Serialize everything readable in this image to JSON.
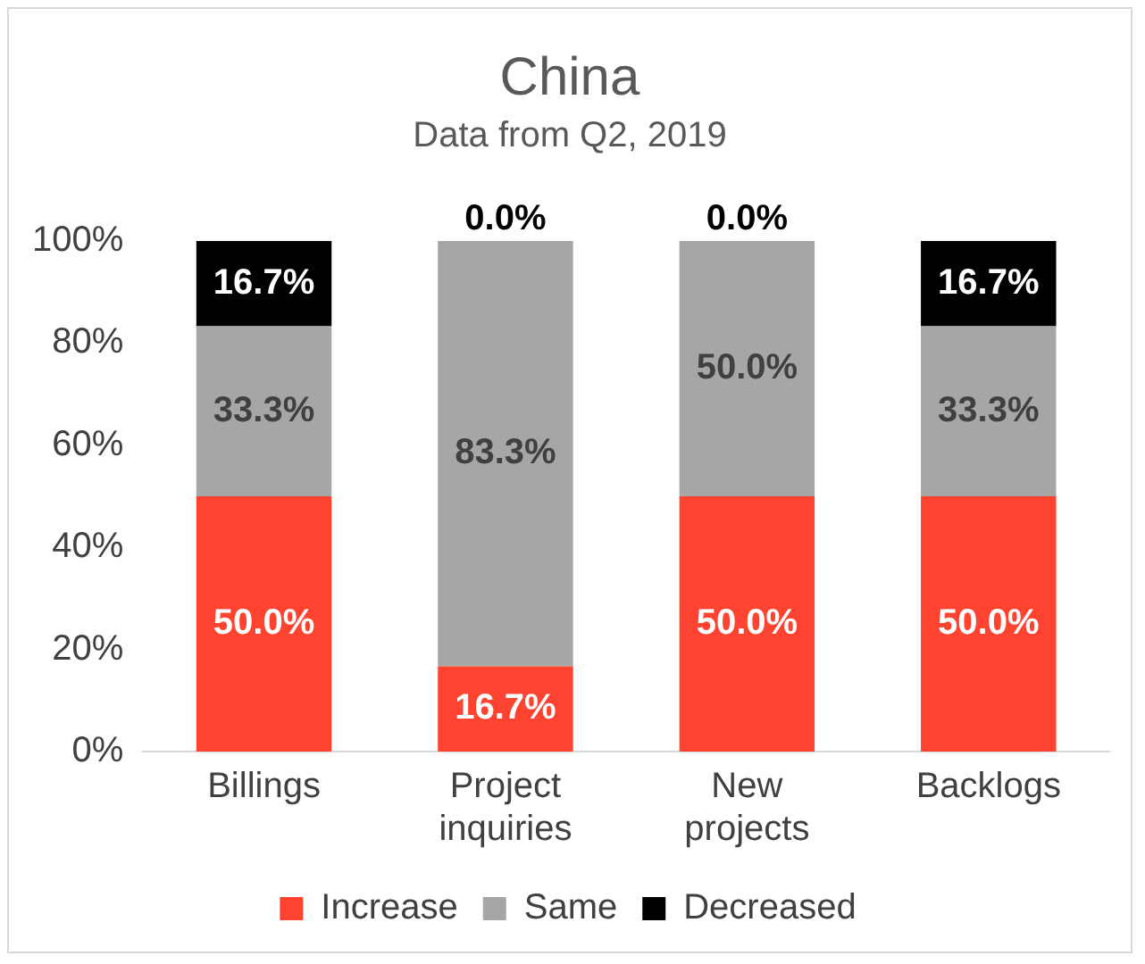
{
  "chart_data": {
    "type": "bar",
    "title": "China",
    "subtitle": "Data from Q2, 2019",
    "stacked": true,
    "categories": [
      "Billings",
      "Project inquiries",
      "New projects",
      "Backlogs"
    ],
    "series": [
      {
        "name": "Increase",
        "color": "#ff4331",
        "values": [
          50.0,
          16.7,
          50.0,
          50.0
        ],
        "value_labels": [
          "50.0%",
          "16.7%",
          "50.0%",
          "50.0%"
        ]
      },
      {
        "name": "Same",
        "color": "#a6a6a6",
        "values": [
          33.3,
          83.3,
          50.0,
          33.3
        ],
        "value_labels": [
          "33.3%",
          "83.3%",
          "50.0%",
          "33.3%"
        ]
      },
      {
        "name": "Decreased",
        "color": "#000000",
        "values": [
          16.7,
          0.0,
          0.0,
          16.7
        ],
        "value_labels": [
          "16.7%",
          "0.0%",
          "0.0%",
          "16.7%"
        ]
      }
    ],
    "ylim": [
      0,
      100
    ],
    "yticks": [
      {
        "value": 0,
        "label": "0%"
      },
      {
        "value": 20,
        "label": "20%"
      },
      {
        "value": 40,
        "label": "40%"
      },
      {
        "value": 60,
        "label": "60%"
      },
      {
        "value": 80,
        "label": "80%"
      },
      {
        "value": 100,
        "label": "100%"
      }
    ],
    "grid": false,
    "legend": "bottom"
  }
}
